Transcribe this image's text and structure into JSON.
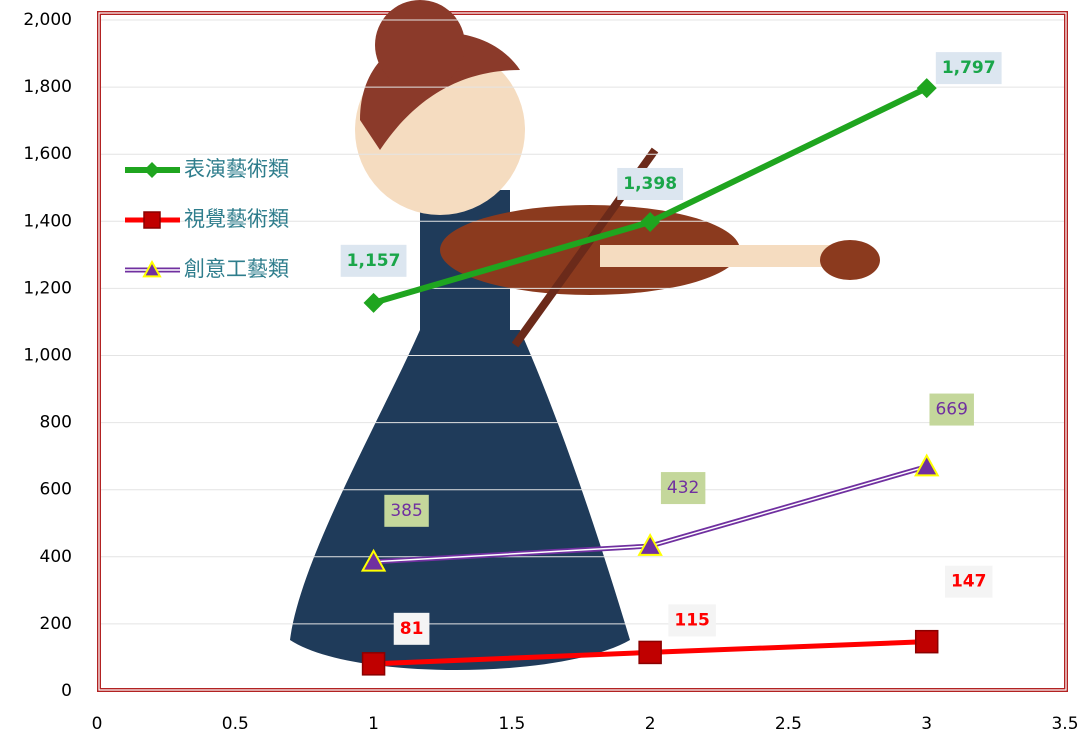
{
  "chart_data": {
    "type": "line",
    "x": [
      1,
      2,
      3
    ],
    "series": [
      {
        "name": "表演藝術類",
        "color": "#1fa51f",
        "marker": "diamond",
        "values": [
          1157,
          1398,
          1797
        ],
        "value_labels": [
          "1,157",
          "1,398",
          "1,797"
        ]
      },
      {
        "name": "視覺藝術類",
        "color": "#ff0000",
        "marker": "square",
        "values": [
          81,
          115,
          147
        ]
      },
      {
        "name": "創意工藝類",
        "color": "#7030a0",
        "marker": "triangle",
        "values": [
          385,
          432,
          669
        ]
      }
    ],
    "xlim": [
      0,
      3.5
    ],
    "xticks": [
      0,
      0.5,
      1,
      1.5,
      2,
      2.5,
      3,
      3.5
    ],
    "ylim": [
      0,
      2000
    ],
    "yticks": [
      0,
      200,
      400,
      600,
      800,
      {
        "value": 1000,
        "label": "1,000"
      },
      {
        "value": 1200,
        "label": "1,200"
      },
      {
        "value": 1400,
        "label": "1,400"
      },
      {
        "value": 1600,
        "label": "1,600"
      },
      {
        "value": 1800,
        "label": "1,800"
      },
      {
        "value": 2000,
        "label": "2,000"
      }
    ],
    "grid": true,
    "legend": "upper left"
  }
}
